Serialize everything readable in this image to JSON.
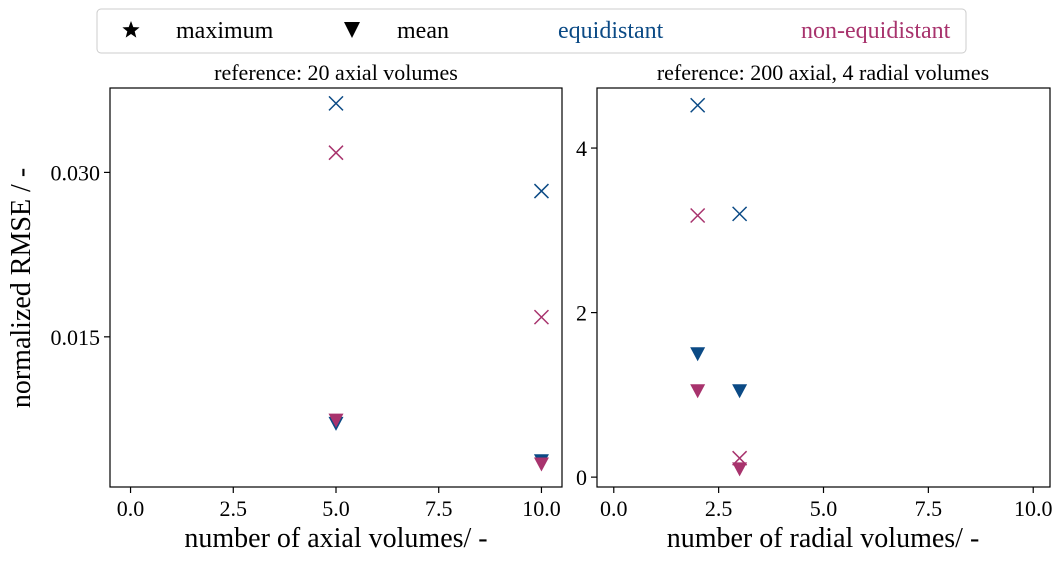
{
  "legend": {
    "items": [
      {
        "label": "maximum",
        "icon": "star-icon"
      },
      {
        "label": "mean",
        "icon": "triangle-down-icon"
      }
    ],
    "groups": [
      {
        "label": "equidistant",
        "color": "#0b4a85"
      },
      {
        "label": "non-equidistant",
        "color": "#a8336d"
      }
    ]
  },
  "ylabel": "normalized RMSE / -",
  "chart_data": [
    {
      "type": "scatter",
      "title": "reference: 20 axial volumes",
      "xlabel": "number of axial volumes/ -",
      "ylabel": "normalized RMSE / -",
      "xlim": [
        -0.5,
        10.5
      ],
      "ylim": [
        0.0013,
        0.0377
      ],
      "xticks": [
        0.0,
        2.5,
        5.0,
        7.5,
        10.0
      ],
      "xtick_labels": [
        "0.0",
        "2.5",
        "5.0",
        "7.5",
        "10.0"
      ],
      "yticks": [
        0.015,
        0.03
      ],
      "ytick_labels": [
        "0.015",
        "0.030"
      ],
      "series": [
        {
          "name": "equidistant",
          "marker": "x",
          "color": "#0b4a85",
          "points": [
            [
              5,
              0.0363
            ],
            [
              10,
              0.0283
            ]
          ]
        },
        {
          "name": "non-equidistant",
          "marker": "x",
          "color": "#a8336d",
          "points": [
            [
              5,
              0.0318
            ],
            [
              10,
              0.0168
            ]
          ]
        },
        {
          "name": "equidistant",
          "marker": "triangle-down",
          "color": "#0b4a85",
          "points": [
            [
              5,
              0.0071
            ],
            [
              10,
              0.0037
            ]
          ]
        },
        {
          "name": "non-equidistant",
          "marker": "triangle-down",
          "color": "#a8336d",
          "points": [
            [
              5,
              0.0074
            ],
            [
              10,
              0.0034
            ]
          ]
        }
      ]
    },
    {
      "type": "scatter",
      "title": "reference: 200 axial, 4 radial volumes",
      "xlabel": "number of radial volumes/ -",
      "ylabel": "",
      "xlim": [
        -0.4,
        10.4
      ],
      "ylim": [
        -0.12,
        4.73
      ],
      "xticks": [
        0.0,
        2.5,
        5.0,
        7.5,
        10.0
      ],
      "xtick_labels": [
        "0.0",
        "2.5",
        "5.0",
        "7.5",
        "10.0"
      ],
      "yticks": [
        0,
        2,
        4
      ],
      "ytick_labels": [
        "0",
        "2",
        "4"
      ],
      "series": [
        {
          "name": "equidistant",
          "marker": "x",
          "color": "#0b4a85",
          "points": [
            [
              2,
              4.52
            ],
            [
              3,
              3.2
            ]
          ]
        },
        {
          "name": "non-equidistant",
          "marker": "x",
          "color": "#a8336d",
          "points": [
            [
              2,
              3.18
            ],
            [
              3,
              0.23
            ]
          ]
        },
        {
          "name": "equidistant",
          "marker": "triangle-down",
          "color": "#0b4a85",
          "points": [
            [
              2,
              1.5
            ],
            [
              3,
              1.05
            ]
          ]
        },
        {
          "name": "non-equidistant",
          "marker": "triangle-down",
          "color": "#a8336d",
          "points": [
            [
              2,
              1.05
            ],
            [
              3,
              0.1
            ]
          ]
        }
      ]
    }
  ]
}
